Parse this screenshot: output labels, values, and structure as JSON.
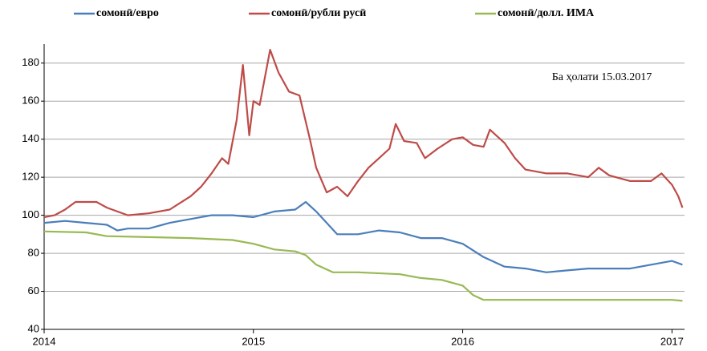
{
  "chart_data": {
    "type": "line",
    "annotation": "Ба ҳолати 15.03.2017",
    "xlim": [
      2014,
      2017.06
    ],
    "xticks": [
      2014,
      2015,
      2016,
      2017
    ],
    "ylim": [
      40,
      190
    ],
    "yticks": [
      40,
      60,
      80,
      100,
      120,
      140,
      160,
      180
    ],
    "grid": true,
    "legend": "top",
    "series": [
      {
        "name": "сомонӣ/евро",
        "color": "#4a7ebb",
        "x": [
          2014.0,
          2014.1,
          2014.2,
          2014.3,
          2014.35,
          2014.4,
          2014.5,
          2014.6,
          2014.7,
          2014.8,
          2014.9,
          2015.0,
          2015.1,
          2015.2,
          2015.25,
          2015.3,
          2015.35,
          2015.4,
          2015.5,
          2015.6,
          2015.7,
          2015.8,
          2015.9,
          2016.0,
          2016.1,
          2016.2,
          2016.3,
          2016.4,
          2016.5,
          2016.6,
          2016.7,
          2016.8,
          2016.9,
          2017.0,
          2017.05
        ],
        "values": [
          96,
          97,
          96,
          95,
          92,
          93,
          93,
          96,
          98,
          100,
          100,
          99,
          102,
          103,
          107,
          102,
          96,
          90,
          90,
          92,
          91,
          88,
          88,
          85,
          78,
          73,
          72,
          70,
          71,
          72,
          72,
          72,
          74,
          76,
          74
        ]
      },
      {
        "name": "сомонӣ/рубли русӣ",
        "color": "#be4b48",
        "x": [
          2014.0,
          2014.05,
          2014.1,
          2014.15,
          2014.25,
          2014.3,
          2014.4,
          2014.5,
          2014.6,
          2014.7,
          2014.75,
          2014.8,
          2014.85,
          2014.88,
          2014.92,
          2014.95,
          2014.98,
          2015.0,
          2015.03,
          2015.08,
          2015.12,
          2015.17,
          2015.22,
          2015.27,
          2015.3,
          2015.35,
          2015.4,
          2015.45,
          2015.5,
          2015.55,
          2015.6,
          2015.65,
          2015.68,
          2015.72,
          2015.78,
          2015.82,
          2015.88,
          2015.95,
          2016.0,
          2016.05,
          2016.1,
          2016.13,
          2016.2,
          2016.25,
          2016.3,
          2016.4,
          2016.5,
          2016.6,
          2016.65,
          2016.7,
          2016.8,
          2016.9,
          2016.95,
          2017.0,
          2017.03,
          2017.05
        ],
        "values": [
          99,
          100,
          103,
          107,
          107,
          104,
          100,
          101,
          103,
          110,
          115,
          122,
          130,
          127,
          150,
          179,
          142,
          160,
          158,
          187,
          175,
          165,
          163,
          140,
          125,
          112,
          115,
          110,
          118,
          125,
          130,
          135,
          148,
          139,
          138,
          130,
          135,
          140,
          141,
          137,
          136,
          145,
          138,
          130,
          124,
          122,
          122,
          120,
          125,
          121,
          118,
          118,
          122,
          116,
          110,
          104
        ]
      },
      {
        "name": "сомонӣ/долл. ИМА",
        "color": "#98b954",
        "x": [
          2014.0,
          2014.2,
          2014.3,
          2014.5,
          2014.7,
          2014.9,
          2015.0,
          2015.1,
          2015.2,
          2015.25,
          2015.3,
          2015.38,
          2015.5,
          2015.7,
          2015.8,
          2015.9,
          2016.0,
          2016.05,
          2016.1,
          2016.5,
          2017.0,
          2017.05
        ],
        "values": [
          91.5,
          91,
          89,
          88.5,
          88,
          87,
          85,
          82,
          81,
          79,
          74,
          70,
          70,
          69,
          67,
          66,
          63,
          58,
          55.5,
          55.5,
          55.5,
          55
        ]
      }
    ]
  }
}
